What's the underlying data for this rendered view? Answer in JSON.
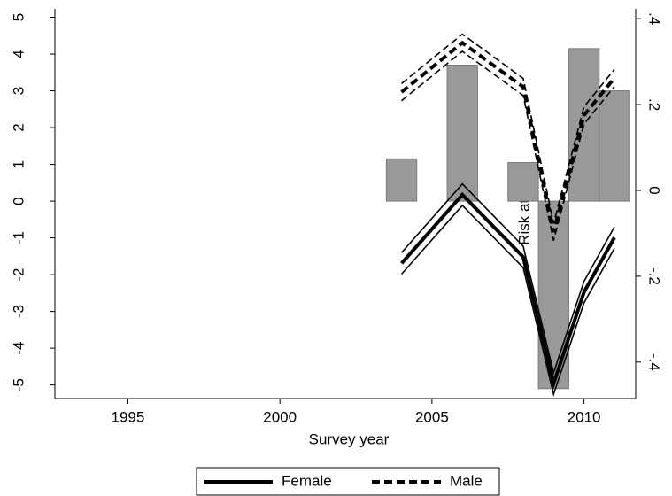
{
  "chart_data": {
    "type": "combo",
    "x_label": "Survey year",
    "y2_label": "Risk attitude",
    "x": [
      2004,
      2006,
      2008,
      2009,
      2010,
      2011
    ],
    "xlim": [
      1992.6,
      2011.7
    ],
    "xticks": [
      1995,
      2000,
      2005,
      2010
    ],
    "ylim": [
      -5.37,
      5.23
    ],
    "yticks": [
      5,
      4,
      3,
      2,
      1,
      0,
      -1,
      -2,
      -3,
      -4,
      -5
    ],
    "y2lim": [
      -0.485,
      0.423
    ],
    "y2ticks": [
      {
        "value": 0.4,
        "label": ".4"
      },
      {
        "value": 0.2,
        "label": ".2"
      },
      {
        "value": 0,
        "label": "0"
      },
      {
        "value": -0.2,
        "label": "-.2"
      },
      {
        "value": -0.4,
        "label": "-.4"
      }
    ],
    "bars": {
      "color": "#999999",
      "values": [
        1.15,
        3.7,
        1.05,
        -5.1,
        4.15,
        3.0
      ]
    },
    "series": [
      {
        "name": "Female",
        "color": "#000000",
        "axis": "y2",
        "dash": false,
        "values": [
          -0.17,
          -0.01,
          -0.155,
          -0.45,
          -0.237,
          -0.11
        ],
        "lower": [
          -0.195,
          -0.035,
          -0.18,
          -0.475,
          -0.262,
          -0.135
        ],
        "upper": [
          -0.145,
          0.015,
          -0.13,
          -0.425,
          -0.212,
          -0.085
        ]
      },
      {
        "name": "Male",
        "color": "#000000",
        "axis": "y2",
        "dash": true,
        "values": [
          0.229,
          0.344,
          0.241,
          -0.097,
          0.175,
          0.262
        ],
        "lower": [
          0.209,
          0.324,
          0.221,
          -0.117,
          0.155,
          0.242
        ],
        "upper": [
          0.249,
          0.364,
          0.261,
          -0.077,
          0.195,
          0.282
        ]
      }
    ],
    "legend": "bottom"
  }
}
